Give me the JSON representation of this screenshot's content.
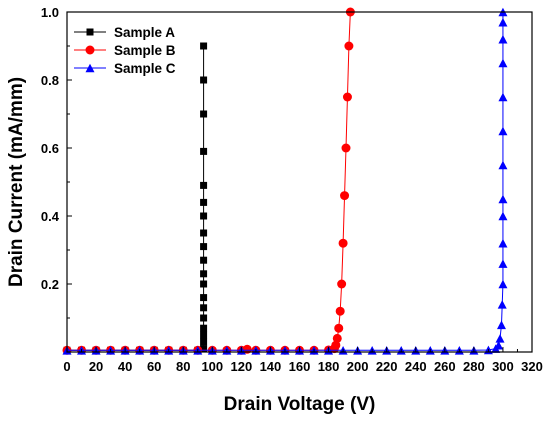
{
  "chart_data": {
    "type": "scatter",
    "xlabel": "Drain Voltage (V)",
    "ylabel": "Drain Current (mA/mm)",
    "xlim": [
      0,
      320
    ],
    "ylim": [
      0,
      1.0
    ],
    "x_ticks": [
      0,
      20,
      40,
      60,
      80,
      100,
      120,
      140,
      160,
      180,
      200,
      220,
      240,
      260,
      280,
      300,
      320
    ],
    "y_ticks": [
      0.2,
      0.4,
      0.6,
      0.8,
      1.0
    ],
    "y_tick_labels": [
      "0.2",
      "0.4",
      "0.6",
      "0.8",
      "1.0"
    ],
    "grid": false,
    "legend_position": "top-left",
    "series": [
      {
        "name": "Sample A",
        "color": "#000000",
        "marker": "square",
        "x": [
          0,
          10,
          20,
          30,
          40,
          50,
          60,
          70,
          80,
          90,
          94,
          94,
          94,
          94,
          94,
          94,
          94,
          94,
          94,
          94,
          94,
          94,
          94,
          94,
          94,
          94,
          94,
          94,
          94
        ],
        "y": [
          0.005,
          0.005,
          0.005,
          0.005,
          0.005,
          0.005,
          0.005,
          0.005,
          0.005,
          0.005,
          0.01,
          0.03,
          0.05,
          0.07,
          0.1,
          0.13,
          0.16,
          0.2,
          0.23,
          0.27,
          0.31,
          0.35,
          0.4,
          0.44,
          0.49,
          0.59,
          0.7,
          0.8,
          0.9
        ]
      },
      {
        "name": "Sample B",
        "color": "#ff0000",
        "marker": "circle",
        "x": [
          0,
          10,
          20,
          30,
          40,
          50,
          60,
          70,
          80,
          90,
          100,
          110,
          120,
          124,
          130,
          140,
          150,
          160,
          170,
          180,
          184,
          185,
          186,
          187,
          188,
          189,
          190,
          191,
          192,
          193,
          194,
          195
        ],
        "y": [
          0.005,
          0.005,
          0.005,
          0.005,
          0.005,
          0.005,
          0.005,
          0.005,
          0.005,
          0.005,
          0.005,
          0.005,
          0.005,
          0.008,
          0.005,
          0.005,
          0.005,
          0.005,
          0.005,
          0.006,
          0.01,
          0.02,
          0.04,
          0.07,
          0.12,
          0.2,
          0.32,
          0.46,
          0.6,
          0.75,
          0.9,
          1.0
        ]
      },
      {
        "name": "Sample C",
        "color": "#0000ff",
        "marker": "triangle",
        "x": [
          0,
          10,
          20,
          30,
          40,
          50,
          60,
          70,
          80,
          90,
          100,
          110,
          120,
          130,
          140,
          150,
          160,
          170,
          180,
          190,
          200,
          210,
          220,
          230,
          240,
          250,
          260,
          270,
          280,
          290,
          295,
          297,
          298,
          299,
          299.5,
          300,
          300,
          300,
          300,
          300,
          300,
          300,
          300,
          300,
          300,
          300,
          300
        ],
        "y": [
          0.005,
          0.005,
          0.005,
          0.005,
          0.005,
          0.005,
          0.005,
          0.005,
          0.005,
          0.005,
          0.005,
          0.005,
          0.005,
          0.005,
          0.005,
          0.005,
          0.005,
          0.005,
          0.005,
          0.005,
          0.005,
          0.005,
          0.005,
          0.005,
          0.005,
          0.005,
          0.005,
          0.005,
          0.005,
          0.006,
          0.01,
          0.02,
          0.04,
          0.08,
          0.14,
          0.2,
          0.26,
          0.32,
          0.4,
          0.45,
          0.55,
          0.65,
          0.75,
          0.85,
          0.92,
          0.97,
          1.0
        ]
      }
    ]
  }
}
